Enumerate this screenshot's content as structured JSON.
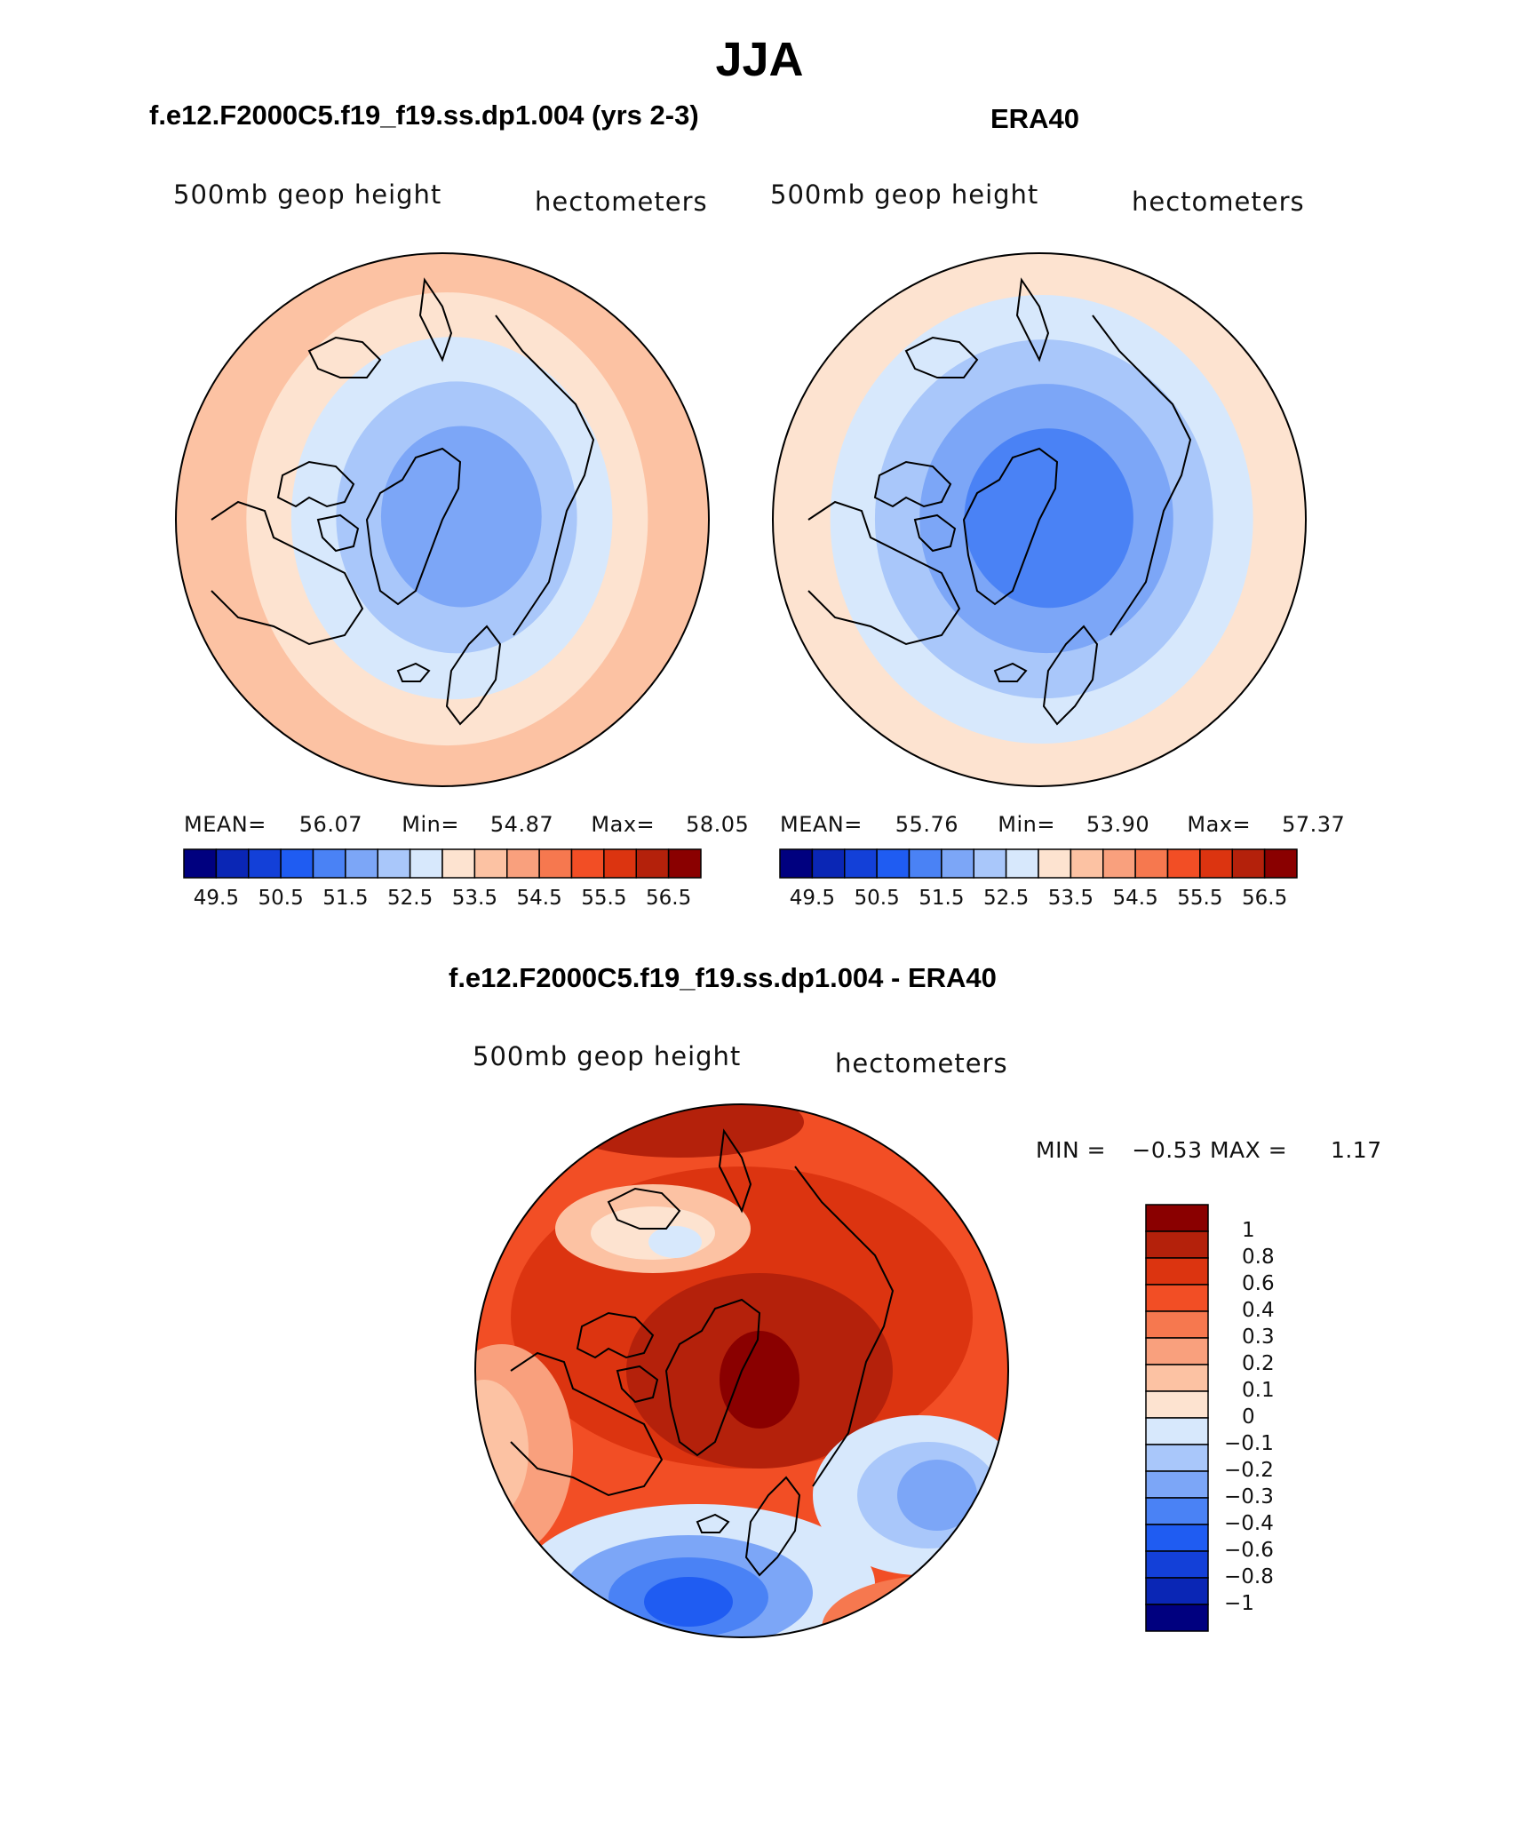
{
  "title": "JJA",
  "panels": [
    {
      "id": "model",
      "title": "f.e12.F2000C5.f19_f19.ss.dp1.004 (yrs 2-3)",
      "variable": "500mb geop height",
      "units": "hectometers",
      "stats": {
        "mean_label": "MEAN=",
        "mean": "56.07",
        "min_label": "Min=",
        "min": "54.87",
        "max_label": "Max=",
        "max": "58.05"
      },
      "field": {
        "center": 53.9,
        "gradient_x": 1.2,
        "gradient_y": 0.4,
        "edge": 57.0
      }
    },
    {
      "id": "obs",
      "title": "ERA40",
      "variable": "500mb geop height",
      "units": "hectometers",
      "stats": {
        "mean_label": "MEAN=",
        "mean": "55.76",
        "min_label": "Min=",
        "min": "53.90",
        "max_label": "Max=",
        "max": "57.37"
      },
      "field": {
        "center": 53.6,
        "gradient_x": 0.6,
        "gradient_y": 0.2,
        "edge": 56.9
      }
    }
  ],
  "colorbar_main": {
    "colors": [
      "#00007f",
      "#0a26b5",
      "#1340d8",
      "#1f5cf2",
      "#4a82f5",
      "#7ca6f7",
      "#a9c7fa",
      "#d7e8fc",
      "#fde3d0",
      "#fcc2a3",
      "#f9a07d",
      "#f6784f",
      "#f24e25",
      "#dc3410",
      "#b4210b",
      "#8a0000"
    ],
    "tick_labels": [
      "49.5",
      "50.5",
      "51.5",
      "52.5",
      "53.5",
      "54.5",
      "55.5",
      "56.5"
    ]
  },
  "diff": {
    "title": "f.e12.F2000C5.f19_f19.ss.dp1.004 - ERA40",
    "variable": "500mb geop height",
    "units": "hectometers",
    "minmax": {
      "min_label": "MIN =",
      "min": "−0.53",
      "max_label": "MAX =",
      "max": "1.17"
    },
    "colorbar": {
      "colors": [
        "#8a0000",
        "#b4210b",
        "#dc3410",
        "#f24e25",
        "#f6784f",
        "#f9a07d",
        "#fcc2a3",
        "#fde3d0",
        "#d7e8fc",
        "#a9c7fa",
        "#7ca6f7",
        "#4a82f5",
        "#1f5cf2",
        "#1340d8",
        "#0a26b5",
        "#00007f"
      ],
      "tick_labels": [
        "1",
        "0.8",
        "0.6",
        "0.4",
        "0.3",
        "0.2",
        "0.1",
        "0",
        "−0.1",
        "−0.2",
        "−0.3",
        "−0.4",
        "−0.6",
        "−0.8",
        "−1"
      ]
    }
  }
}
